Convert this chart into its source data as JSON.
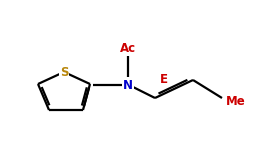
{
  "bg_color": "#ffffff",
  "bond_color": "#000000",
  "S_color": "#b8860b",
  "N_color": "#0000cc",
  "text_color_red": "#cc0000",
  "label_Ac": "Ac",
  "label_N": "N",
  "label_E": "E",
  "label_Me": "Me",
  "label_S": "S",
  "figsize": [
    2.79,
    1.53
  ],
  "dpi": 100,
  "lw": 1.6
}
